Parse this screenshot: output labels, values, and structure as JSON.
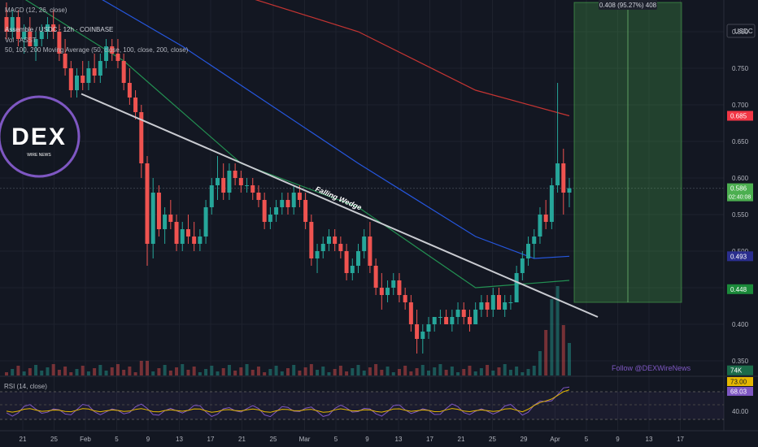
{
  "header": {
    "indicator_top": "MACD (12, 26, close)",
    "symbol_line": "Assemble / USDC · 12h · COINBASE",
    "volume_label": "Vol · ASST",
    "ma_label": "50, 100, 200 Moving Average (50, close, 100, close, 200, close)"
  },
  "logo": {
    "text": "DEX",
    "subtext": "WIRE NEWS"
  },
  "annotations": {
    "pattern": "Falling Wedge",
    "measure": "0.408 (95.27%) 408",
    "follow": "Follow @DEXWireNews"
  },
  "price_axis": {
    "currency": "USDC",
    "ticks": [
      "0.800",
      "0.750",
      "0.700",
      "0.650",
      "0.600",
      "0.550",
      "0.500",
      "0.450",
      "0.400",
      "0.350"
    ],
    "tick_values": [
      0.8,
      0.75,
      0.7,
      0.65,
      0.6,
      0.55,
      0.5,
      0.45,
      0.4,
      0.35
    ]
  },
  "price_badges": [
    {
      "label": "0.685",
      "value": 0.685,
      "color": "#f23645"
    },
    {
      "label": "0.586",
      "sublabel": "02:40:08",
      "value": 0.586,
      "color": "#4caf50"
    },
    {
      "label": "0.493",
      "value": 0.493,
      "color": "#2a2e8e"
    },
    {
      "label": "0.448",
      "value": 0.448,
      "color": "#1b8a3a"
    },
    {
      "label": "74K",
      "value": 0.337,
      "color": "#1b6b4a"
    }
  ],
  "rsi": {
    "label": "RSI (14, close)",
    "badges": [
      {
        "label": "73.00",
        "color": "#e6b800",
        "text_color": "#131722"
      },
      {
        "label": "68.03",
        "color": "#7e57c2",
        "text_color": "#ffffff"
      }
    ],
    "tick": "40.00"
  },
  "time_axis": {
    "labels": [
      "21",
      "25",
      "Feb",
      "5",
      "9",
      "13",
      "17",
      "21",
      "25",
      "Mar",
      "5",
      "9",
      "13",
      "17",
      "21",
      "25",
      "29",
      "Apr",
      "5",
      "9",
      "13",
      "17"
    ]
  },
  "chart_data": {
    "type": "candlestick",
    "title": "Assemble / USDC · 12h · COINBASE",
    "interval": "12h",
    "ylim": [
      0.33,
      0.83
    ],
    "candles_ohlc_approx": [
      [
        0.82,
        0.84,
        0.79,
        0.8
      ],
      [
        0.8,
        0.83,
        0.79,
        0.82
      ],
      [
        0.82,
        0.83,
        0.78,
        0.79
      ],
      [
        0.79,
        0.81,
        0.77,
        0.8
      ],
      [
        0.8,
        0.82,
        0.78,
        0.78
      ],
      [
        0.78,
        0.8,
        0.76,
        0.79
      ],
      [
        0.79,
        0.81,
        0.78,
        0.8
      ],
      [
        0.8,
        0.82,
        0.79,
        0.81
      ],
      [
        0.81,
        0.83,
        0.79,
        0.8
      ],
      [
        0.8,
        0.81,
        0.76,
        0.77
      ],
      [
        0.77,
        0.79,
        0.74,
        0.75
      ],
      [
        0.75,
        0.76,
        0.71,
        0.72
      ],
      [
        0.72,
        0.75,
        0.71,
        0.74
      ],
      [
        0.74,
        0.76,
        0.72,
        0.73
      ],
      [
        0.73,
        0.76,
        0.72,
        0.75
      ],
      [
        0.75,
        0.77,
        0.73,
        0.74
      ],
      [
        0.74,
        0.77,
        0.73,
        0.76
      ],
      [
        0.76,
        0.79,
        0.75,
        0.78
      ],
      [
        0.78,
        0.79,
        0.76,
        0.77
      ],
      [
        0.77,
        0.79,
        0.75,
        0.76
      ],
      [
        0.76,
        0.77,
        0.72,
        0.73
      ],
      [
        0.73,
        0.75,
        0.7,
        0.71
      ],
      [
        0.71,
        0.72,
        0.68,
        0.69
      ],
      [
        0.69,
        0.7,
        0.6,
        0.62
      ],
      [
        0.62,
        0.63,
        0.48,
        0.51
      ],
      [
        0.51,
        0.6,
        0.49,
        0.58
      ],
      [
        0.58,
        0.59,
        0.52,
        0.53
      ],
      [
        0.53,
        0.56,
        0.51,
        0.55
      ],
      [
        0.55,
        0.57,
        0.53,
        0.54
      ],
      [
        0.54,
        0.55,
        0.5,
        0.51
      ],
      [
        0.51,
        0.54,
        0.5,
        0.53
      ],
      [
        0.53,
        0.55,
        0.51,
        0.52
      ],
      [
        0.52,
        0.54,
        0.5,
        0.51
      ],
      [
        0.51,
        0.53,
        0.5,
        0.52
      ],
      [
        0.52,
        0.57,
        0.51,
        0.56
      ],
      [
        0.56,
        0.6,
        0.55,
        0.59
      ],
      [
        0.59,
        0.63,
        0.57,
        0.6
      ],
      [
        0.6,
        0.62,
        0.57,
        0.58
      ],
      [
        0.58,
        0.62,
        0.57,
        0.61
      ],
      [
        0.61,
        0.62,
        0.59,
        0.6
      ],
      [
        0.6,
        0.61,
        0.58,
        0.59
      ],
      [
        0.59,
        0.6,
        0.58,
        0.59
      ],
      [
        0.59,
        0.6,
        0.57,
        0.58
      ],
      [
        0.58,
        0.59,
        0.56,
        0.57
      ],
      [
        0.57,
        0.58,
        0.53,
        0.54
      ],
      [
        0.54,
        0.56,
        0.53,
        0.55
      ],
      [
        0.55,
        0.57,
        0.54,
        0.56
      ],
      [
        0.56,
        0.58,
        0.55,
        0.57
      ],
      [
        0.57,
        0.58,
        0.55,
        0.56
      ],
      [
        0.56,
        0.59,
        0.55,
        0.58
      ],
      [
        0.58,
        0.59,
        0.56,
        0.57
      ],
      [
        0.57,
        0.58,
        0.53,
        0.54
      ],
      [
        0.54,
        0.55,
        0.48,
        0.49
      ],
      [
        0.49,
        0.51,
        0.47,
        0.5
      ],
      [
        0.5,
        0.52,
        0.49,
        0.51
      ],
      [
        0.51,
        0.53,
        0.5,
        0.52
      ],
      [
        0.52,
        0.53,
        0.5,
        0.51
      ],
      [
        0.51,
        0.52,
        0.49,
        0.5
      ],
      [
        0.5,
        0.51,
        0.46,
        0.47
      ],
      [
        0.47,
        0.49,
        0.46,
        0.48
      ],
      [
        0.48,
        0.51,
        0.47,
        0.5
      ],
      [
        0.5,
        0.53,
        0.49,
        0.52
      ],
      [
        0.52,
        0.54,
        0.47,
        0.48
      ],
      [
        0.48,
        0.49,
        0.44,
        0.45
      ],
      [
        0.45,
        0.47,
        0.42,
        0.44
      ],
      [
        0.44,
        0.46,
        0.43,
        0.45
      ],
      [
        0.45,
        0.47,
        0.44,
        0.46
      ],
      [
        0.46,
        0.47,
        0.43,
        0.44
      ],
      [
        0.44,
        0.45,
        0.42,
        0.43
      ],
      [
        0.43,
        0.44,
        0.39,
        0.4
      ],
      [
        0.4,
        0.42,
        0.36,
        0.38
      ],
      [
        0.38,
        0.4,
        0.36,
        0.39
      ],
      [
        0.39,
        0.41,
        0.38,
        0.4
      ],
      [
        0.4,
        0.41,
        0.39,
        0.41
      ],
      [
        0.41,
        0.42,
        0.4,
        0.41
      ],
      [
        0.41,
        0.42,
        0.4,
        0.4
      ],
      [
        0.4,
        0.42,
        0.39,
        0.41
      ],
      [
        0.41,
        0.43,
        0.4,
        0.42
      ],
      [
        0.42,
        0.43,
        0.4,
        0.41
      ],
      [
        0.41,
        0.42,
        0.39,
        0.4
      ],
      [
        0.4,
        0.43,
        0.4,
        0.42
      ],
      [
        0.42,
        0.44,
        0.41,
        0.43
      ],
      [
        0.43,
        0.44,
        0.41,
        0.42
      ],
      [
        0.42,
        0.45,
        0.41,
        0.44
      ],
      [
        0.44,
        0.45,
        0.42,
        0.42
      ],
      [
        0.42,
        0.44,
        0.41,
        0.43
      ],
      [
        0.43,
        0.44,
        0.42,
        0.43
      ],
      [
        0.43,
        0.48,
        0.43,
        0.47
      ],
      [
        0.47,
        0.5,
        0.46,
        0.49
      ],
      [
        0.49,
        0.52,
        0.48,
        0.51
      ],
      [
        0.51,
        0.53,
        0.49,
        0.52
      ],
      [
        0.52,
        0.56,
        0.51,
        0.55
      ],
      [
        0.55,
        0.57,
        0.53,
        0.54
      ],
      [
        0.54,
        0.6,
        0.53,
        0.59
      ],
      [
        0.59,
        0.73,
        0.58,
        0.62
      ],
      [
        0.62,
        0.64,
        0.55,
        0.58
      ],
      [
        0.58,
        0.6,
        0.56,
        0.586
      ]
    ],
    "moving_averages": [
      {
        "name": "MA 50",
        "color": "#26a65b",
        "approx_path": [
          [
            0,
            0.86
          ],
          [
            20,
            0.76
          ],
          [
            40,
            0.62
          ],
          [
            60,
            0.56
          ],
          [
            80,
            0.45
          ],
          [
            96,
            0.46
          ]
        ]
      },
      {
        "name": "MA 100",
        "color": "#2962ff",
        "approx_path": [
          [
            0,
            0.92
          ],
          [
            30,
            0.78
          ],
          [
            60,
            0.62
          ],
          [
            80,
            0.52
          ],
          [
            90,
            0.49
          ],
          [
            96,
            0.493
          ]
        ]
      },
      {
        "name": "MA 200",
        "color": "#e53935",
        "approx_path": [
          [
            40,
            0.85
          ],
          [
            60,
            0.8
          ],
          [
            80,
            0.72
          ],
          [
            96,
            0.685
          ]
        ]
      }
    ],
    "wedge_line": {
      "label": "Falling Wedge",
      "from": [
        0.715,
        "start"
      ],
      "to": [
        0.41,
        "end"
      ]
    },
    "measure_box": {
      "from": 0.43,
      "to": 0.84,
      "change": "0.408 (95.27%)"
    },
    "rsi_range": [
      20,
      90
    ]
  }
}
